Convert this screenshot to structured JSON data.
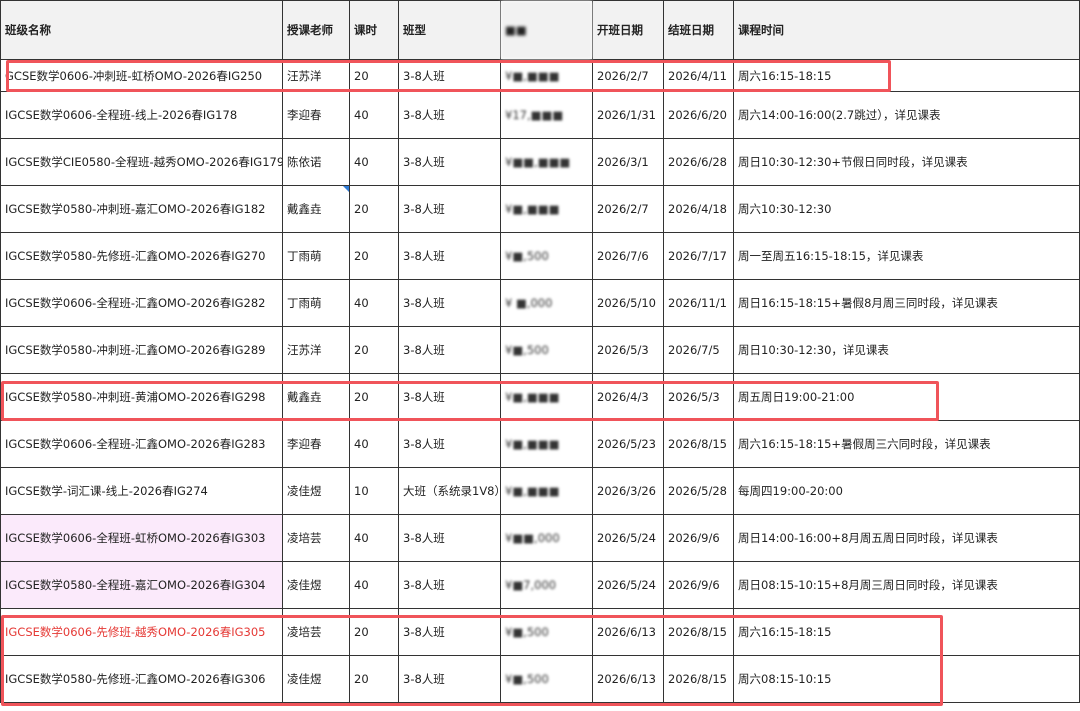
{
  "table": {
    "headers": [
      "班级名称",
      "授课老师",
      "课时",
      "班型",
      "■■",
      "开班日期",
      "结班日期",
      "课程时间"
    ],
    "rows": [
      {
        "name": "GCSE数学0606-冲刺班-虹桥OMO-2026春IG250",
        "teacher": "汪苏洋",
        "hours": "20",
        "type": "3-8人班",
        "price": "¥■,■■■",
        "start": "2026/2/7",
        "end": "2026/4/11",
        "time": "周六16:15-18:15"
      },
      {
        "name": "IGCSE数学0606-全程班-线上-2026春IG178",
        "teacher": "李迎春",
        "hours": "40",
        "type": "3-8人班",
        "price": "¥17,■■■",
        "start": "2026/1/31",
        "end": "2026/6/20",
        "time": "周六14:00-16:00(2.7跳过），详见课表"
      },
      {
        "name": "IGCSE数学CIE0580-全程班-越秀OMO-2026春IG179",
        "teacher": "陈依诺",
        "hours": "40",
        "type": "3-8人班",
        "price": "¥■■,■■■",
        "start": "2026/3/1",
        "end": "2026/6/28",
        "time": "周日10:30-12:30+节假日同时段，详见课表"
      },
      {
        "name": "IGCSE数学0580-冲刺班-嘉汇OMO-2026春IG182",
        "teacher": "戴鑫垚",
        "hours": "20",
        "type": "3-8人班",
        "price": "¥■,■■■",
        "start": "2026/2/7",
        "end": "2026/4/18",
        "time": "周六10:30-12:30"
      },
      {
        "name": "IGCSE数学0580-先修班-汇鑫OMO-2026春IG270",
        "teacher": "丁雨萌",
        "hours": "20",
        "type": "3-8人班",
        "price": "¥■,500",
        "start": "2026/7/6",
        "end": "2026/7/17",
        "time": "周一至周五16:15-18:15，详见课表"
      },
      {
        "name": "IGCSE数学0606-全程班-汇鑫OMO-2026春IG282",
        "teacher": "丁雨萌",
        "hours": "40",
        "type": "3-8人班",
        "price": "¥ ■,000",
        "start": "2026/5/10",
        "end": "2026/11/1",
        "time": "周日16:15-18:15+暑假8月周三同时段，详见课表"
      },
      {
        "name": "IGCSE数学0580-冲刺班-汇鑫OMO-2026春IG289",
        "teacher": "汪苏洋",
        "hours": "20",
        "type": "3-8人班",
        "price": "¥■,500",
        "start": "2026/5/3",
        "end": "2026/7/5",
        "time": "周日10:30-12:30，详见课表"
      },
      {
        "name": "IGCSE数学0580-冲刺班-黄浦OMO-2026春IG298",
        "teacher": "戴鑫垚",
        "hours": "20",
        "type": "3-8人班",
        "price": "¥■,■■■",
        "start": "2026/4/3",
        "end": "2026/5/3",
        "time": "周五周日19:00-21:00"
      },
      {
        "name": "IGCSE数学0606-全程班-汇鑫OMO-2026春IG283",
        "teacher": "李迎春",
        "hours": "40",
        "type": "3-8人班",
        "price": "¥■,■■■",
        "start": "2026/5/23",
        "end": "2026/8/15",
        "time": "周六16:15-18:15+暑假周三六同时段，详见课表"
      },
      {
        "name": "IGCSE数学-词汇课-线上-2026春IG274",
        "teacher": "凌佳煜",
        "hours": "10",
        "type": "大班（系统录1V8）",
        "price": "¥■,■■■",
        "start": "2026/3/26",
        "end": "2026/5/28",
        "time": "每周四19:00-20:00"
      },
      {
        "name": "IGCSE数学0606-全程班-虹桥OMO-2026春IG303",
        "teacher": "凌培芸",
        "hours": "40",
        "type": "3-8人班",
        "price": "¥■■,000",
        "start": "2026/5/24",
        "end": "2026/9/6",
        "time": "周日14:00-16:00+8月周五周日同时段，详见课表"
      },
      {
        "name": "IGCSE数学0580-全程班-嘉汇OMO-2026春IG304",
        "teacher": "凌佳煜",
        "hours": "40",
        "type": "3-8人班",
        "price": "¥■7,000",
        "start": "2026/5/24",
        "end": "2026/9/6",
        "time": "周日08:15-10:15+8月周三周日同时段，详见课表"
      },
      {
        "name": "IGCSE数学0606-先修班-越秀OMO-2026春IG305",
        "teacher": "凌培芸",
        "hours": "20",
        "type": "3-8人班",
        "price": "¥■,500",
        "start": "2026/6/13",
        "end": "2026/8/15",
        "time": "周六16:15-18:15"
      },
      {
        "name": "IGCSE数学0580-先修班-汇鑫OMO-2026春IG306",
        "teacher": "凌佳煜",
        "hours": "20",
        "type": "3-8人班",
        "price": "¥■,500",
        "start": "2026/6/13",
        "end": "2026/8/15",
        "time": "周六08:15-10:15"
      }
    ]
  },
  "colors": {
    "highlight_box": "#f0545a",
    "red_text": "#e53935",
    "pink_fill": "#fbeafb",
    "header_fill": "#f2f2f2"
  }
}
